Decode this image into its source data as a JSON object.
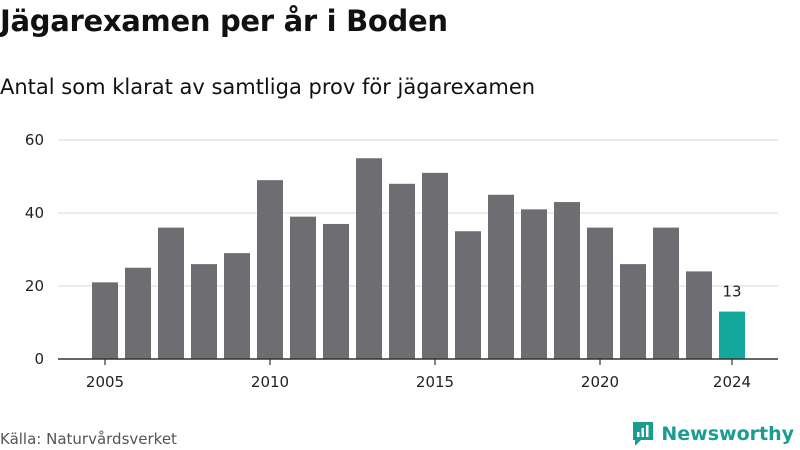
{
  "chart_data": {
    "type": "bar",
    "title": "Jägarexamen per år i Boden",
    "subtitle": "Antal som klarat av samtliga prov för jägarexamen",
    "x": [
      2005,
      2006,
      2007,
      2008,
      2009,
      2010,
      2011,
      2012,
      2013,
      2014,
      2015,
      2016,
      2017,
      2018,
      2019,
      2020,
      2021,
      2022,
      2023,
      2024
    ],
    "values": [
      21,
      25,
      36,
      26,
      29,
      49,
      39,
      37,
      55,
      48,
      51,
      35,
      45,
      41,
      43,
      36,
      26,
      36,
      24,
      13
    ],
    "xticks": [
      "2005",
      "2010",
      "2015",
      "2020",
      "2024"
    ],
    "yticks": [
      "0",
      "20",
      "40",
      "60"
    ],
    "ylim": [
      0,
      60
    ],
    "grid": true,
    "bar_color": "#6e6d72",
    "highlight_color": "#12a89b",
    "highlight_index": 19,
    "data_labels": [
      {
        "index": 19,
        "text": "13"
      }
    ]
  },
  "footer": {
    "source": "Källa: Naturvårdsverket",
    "brand": "Newsworthy",
    "brand_icon": "newsworthy-logo-icon",
    "brand_color": "#1a9c92"
  }
}
